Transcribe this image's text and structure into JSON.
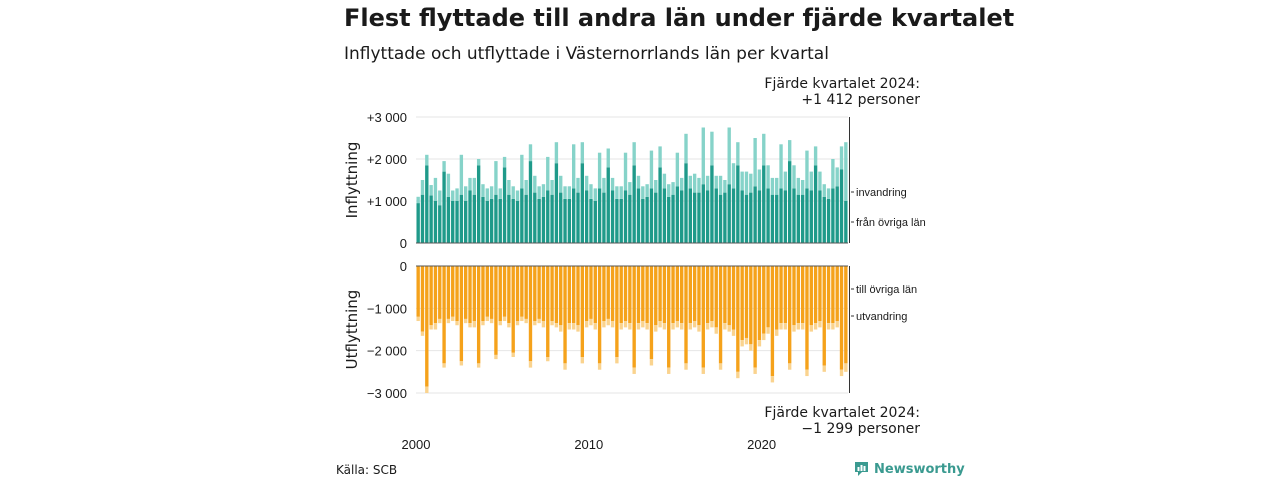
{
  "title": "Flest flyttade till andra län under fjärde kvartalet",
  "subtitle": "Inflyttade och utflyttade i Västernorrlands län per kvartal",
  "annotation_top": {
    "line1": "Fjärde kvartalet 2024:",
    "line2": "+1 412 personer"
  },
  "annotation_bottom": {
    "line1": "Fjärde kvartalet 2024:",
    "line2": "−1 299 personer"
  },
  "source": "Källa: SCB",
  "logo_text": "Newsworthy",
  "colors": {
    "in_lan": "#1f9a8a",
    "in_inv": "#86d3c9",
    "ut_lan": "#f5a21b",
    "ut_utv": "#fad38e"
  },
  "chart_data": [
    {
      "type": "bar",
      "stacked": true,
      "ylabel": "Inflyttning",
      "ylim": [
        0,
        3000
      ],
      "yticks": [
        {
          "value": 0,
          "label": "0"
        },
        {
          "value": 1000,
          "label": "+1 000"
        },
        {
          "value": 2000,
          "label": "+2 000"
        },
        {
          "value": 3000,
          "label": "+3 000"
        }
      ],
      "series_labels": [
        "från övriga län",
        "invandring"
      ],
      "from_other_counties": [
        950,
        1150,
        1850,
        1130,
        1000,
        900,
        1700,
        1100,
        1000,
        1000,
        1150,
        1000,
        1250,
        1150,
        1850,
        1100,
        1000,
        1050,
        1150,
        1050,
        1800,
        1150,
        1050,
        1000,
        1300,
        1150,
        1950,
        1200,
        1050,
        1100,
        1250,
        1150,
        1900,
        1200,
        1050,
        1050,
        1300,
        1200,
        1900,
        1250,
        1050,
        1000,
        1300,
        1200,
        1800,
        1250,
        1050,
        1050,
        1250,
        1150,
        1850,
        1300,
        1050,
        1100,
        1300,
        1200,
        1800,
        1300,
        1100,
        1150,
        1350,
        1250,
        1900,
        1300,
        1200,
        1200,
        1400,
        1250,
        1850,
        1300,
        1150,
        1200,
        1400,
        1300,
        1850,
        1250,
        1150,
        1200,
        1350,
        1250,
        1850,
        1300,
        1150,
        1150,
        1300,
        1250,
        1950,
        1300,
        1150,
        1150,
        1300,
        1250,
        1850,
        1250,
        1100,
        1050,
        1300,
        1350,
        1750,
        1000
      ],
      "immigration": [
        150,
        350,
        250,
        250,
        550,
        350,
        250,
        550,
        250,
        300,
        950,
        350,
        300,
        400,
        150,
        300,
        300,
        300,
        800,
        250,
        250,
        350,
        300,
        250,
        800,
        350,
        400,
        400,
        300,
        300,
        800,
        350,
        500,
        400,
        300,
        300,
        1050,
        350,
        500,
        350,
        350,
        300,
        850,
        350,
        450,
        300,
        300,
        300,
        900,
        300,
        550,
        300,
        300,
        300,
        900,
        300,
        500,
        350,
        300,
        300,
        800,
        300,
        700,
        300,
        450,
        350,
        1350,
        350,
        800,
        300,
        450,
        300,
        1350,
        600,
        550,
        450,
        550,
        450,
        1150,
        500,
        750,
        550,
        400,
        400,
        1050,
        450,
        500,
        550,
        400,
        350,
        900,
        450,
        450,
        450,
        300,
        250,
        700,
        450,
        550,
        1400
      ],
      "quarter_count": 100,
      "x_start": 2000,
      "xticks": [
        "2000",
        "2010",
        "2020"
      ]
    },
    {
      "type": "bar",
      "stacked": true,
      "ylabel": "Utflyttning",
      "ylim": [
        -3000,
        0
      ],
      "yticks": [
        {
          "value": 0,
          "label": "0"
        },
        {
          "value": -1000,
          "label": "−1 000"
        },
        {
          "value": -2000,
          "label": "−2 000"
        },
        {
          "value": -3000,
          "label": "−3 000"
        }
      ],
      "series_labels": [
        "till övriga län",
        "utvandring"
      ],
      "to_other_counties": [
        1200,
        1550,
        2850,
        1400,
        1350,
        1250,
        2300,
        1250,
        1200,
        1300,
        2250,
        1250,
        1350,
        1300,
        2300,
        1300,
        1200,
        1250,
        2100,
        1300,
        1200,
        1350,
        2050,
        1300,
        1200,
        1250,
        2250,
        1300,
        1250,
        1300,
        2150,
        1300,
        1350,
        1400,
        2300,
        1350,
        1350,
        1400,
        2150,
        1300,
        1250,
        1350,
        2300,
        1300,
        1250,
        1300,
        2150,
        1350,
        1300,
        1350,
        2400,
        1350,
        1300,
        1350,
        2200,
        1400,
        1300,
        1350,
        2400,
        1350,
        1300,
        1350,
        2300,
        1350,
        1300,
        1400,
        2400,
        1350,
        1300,
        1450,
        2300,
        1350,
        1400,
        1500,
        2500,
        1750,
        1700,
        1850,
        2400,
        1750,
        1600,
        1450,
        2600,
        1500,
        1350,
        1350,
        2300,
        1400,
        1350,
        1350,
        2450,
        1400,
        1350,
        1300,
        2350,
        1350,
        1350,
        1300,
        2450,
        2300
      ],
      "emigration": [
        100,
        100,
        150,
        100,
        150,
        100,
        100,
        100,
        100,
        100,
        100,
        100,
        100,
        150,
        100,
        100,
        100,
        100,
        100,
        100,
        100,
        100,
        100,
        100,
        100,
        100,
        150,
        100,
        100,
        150,
        100,
        100,
        100,
        150,
        150,
        150,
        150,
        150,
        150,
        150,
        150,
        150,
        150,
        150,
        150,
        150,
        150,
        150,
        150,
        150,
        150,
        150,
        150,
        150,
        150,
        150,
        150,
        150,
        150,
        150,
        150,
        150,
        150,
        150,
        150,
        150,
        150,
        150,
        150,
        150,
        150,
        150,
        150,
        150,
        150,
        150,
        150,
        150,
        150,
        150,
        150,
        150,
        150,
        150,
        150,
        150,
        150,
        150,
        150,
        150,
        150,
        150,
        150,
        150,
        150,
        150,
        150,
        150,
        150,
        200
      ],
      "quarter_count": 100,
      "x_start": 2000,
      "xticks": [
        "2000",
        "2010",
        "2020"
      ]
    }
  ]
}
